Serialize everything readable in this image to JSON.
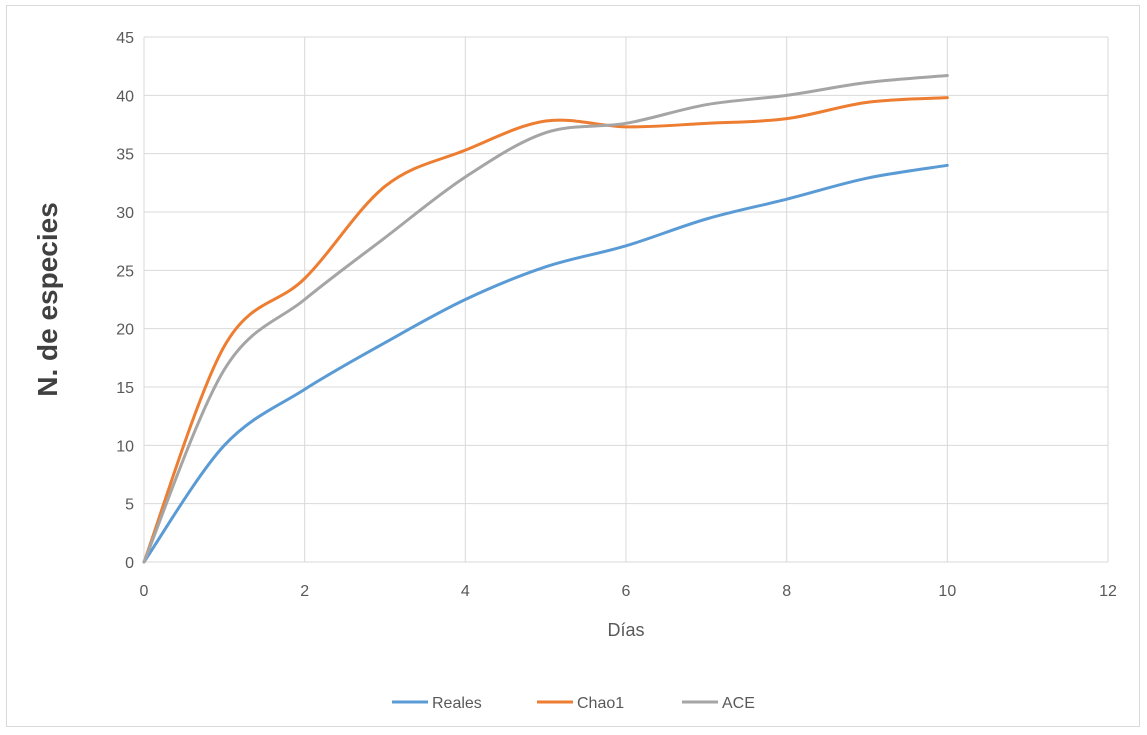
{
  "chart_data": {
    "type": "line",
    "xlabel": "Días",
    "ylabel": "N. de especies",
    "xlim": [
      0,
      12
    ],
    "ylim": [
      0,
      45
    ],
    "xticks": [
      0,
      2,
      4,
      6,
      8,
      10,
      12
    ],
    "yticks": [
      0,
      5,
      10,
      15,
      20,
      25,
      30,
      35,
      40,
      45
    ],
    "grid": "horizontal",
    "legend": "bottom",
    "x": [
      0,
      1,
      2,
      3,
      4,
      5,
      6,
      7,
      8,
      9,
      10
    ],
    "series": [
      {
        "name": "Reales",
        "color": "#5b9bd5",
        "values": [
          0,
          10,
          14.8,
          18.8,
          22.5,
          25.3,
          27.1,
          29.4,
          31.1,
          32.9,
          34
        ]
      },
      {
        "name": "Chao1",
        "color": "#ed7d31",
        "values": [
          0,
          18.5,
          24.3,
          32.2,
          35.3,
          37.8,
          37.3,
          37.6,
          38,
          39.4,
          39.8
        ]
      },
      {
        "name": "ACE",
        "color": "#a5a5a5",
        "values": [
          0,
          16.5,
          22.5,
          27.8,
          33,
          36.8,
          37.6,
          39.2,
          40,
          41.1,
          41.7
        ]
      }
    ]
  }
}
